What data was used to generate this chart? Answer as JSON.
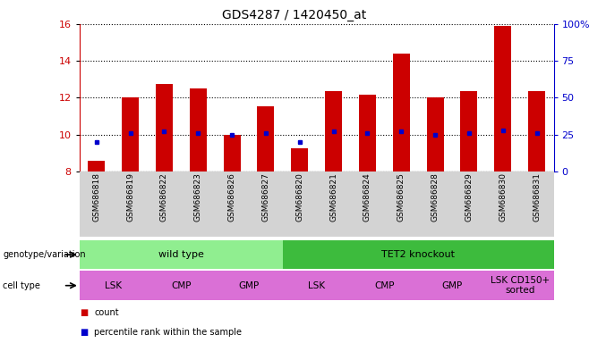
{
  "title": "GDS4287 / 1420450_at",
  "samples": [
    "GSM686818",
    "GSM686819",
    "GSM686822",
    "GSM686823",
    "GSM686826",
    "GSM686827",
    "GSM686820",
    "GSM686821",
    "GSM686824",
    "GSM686825",
    "GSM686828",
    "GSM686829",
    "GSM686830",
    "GSM686831"
  ],
  "counts": [
    8.6,
    12.0,
    12.75,
    12.5,
    10.0,
    11.55,
    9.25,
    12.35,
    12.15,
    14.4,
    12.0,
    12.35,
    15.9,
    12.35
  ],
  "percentiles": [
    20,
    26,
    27,
    26,
    25,
    26,
    20,
    27,
    26,
    27,
    25,
    26,
    28,
    26
  ],
  "ylim_left": [
    8,
    16
  ],
  "ylim_right": [
    0,
    100
  ],
  "yticks_left": [
    8,
    10,
    12,
    14,
    16
  ],
  "yticks_right": [
    0,
    25,
    50,
    75,
    100
  ],
  "bar_color": "#cc0000",
  "dot_color": "#0000cc",
  "bar_width": 0.5,
  "genotype_groups": [
    {
      "label": "wild type",
      "start": 0,
      "end": 6,
      "color": "#90ee90"
    },
    {
      "label": "TET2 knockout",
      "start": 6,
      "end": 14,
      "color": "#3dbb3d"
    }
  ],
  "cell_type_groups": [
    {
      "label": "LSK",
      "start": 0,
      "end": 2
    },
    {
      "label": "CMP",
      "start": 2,
      "end": 4
    },
    {
      "label": "GMP",
      "start": 4,
      "end": 6
    },
    {
      "label": "LSK",
      "start": 6,
      "end": 8
    },
    {
      "label": "CMP",
      "start": 8,
      "end": 10
    },
    {
      "label": "GMP",
      "start": 10,
      "end": 12
    },
    {
      "label": "LSK CD150+\nsorted",
      "start": 12,
      "end": 14
    }
  ],
  "cell_type_color": "#da70d6",
  "legend_items": [
    {
      "label": "count",
      "color": "#cc0000"
    },
    {
      "label": "percentile rank within the sample",
      "color": "#0000cc"
    }
  ],
  "grid_color": "black",
  "tick_label_color_left": "#cc0000",
  "tick_label_color_right": "#0000cc",
  "xlabel_bg": "#d3d3d3"
}
